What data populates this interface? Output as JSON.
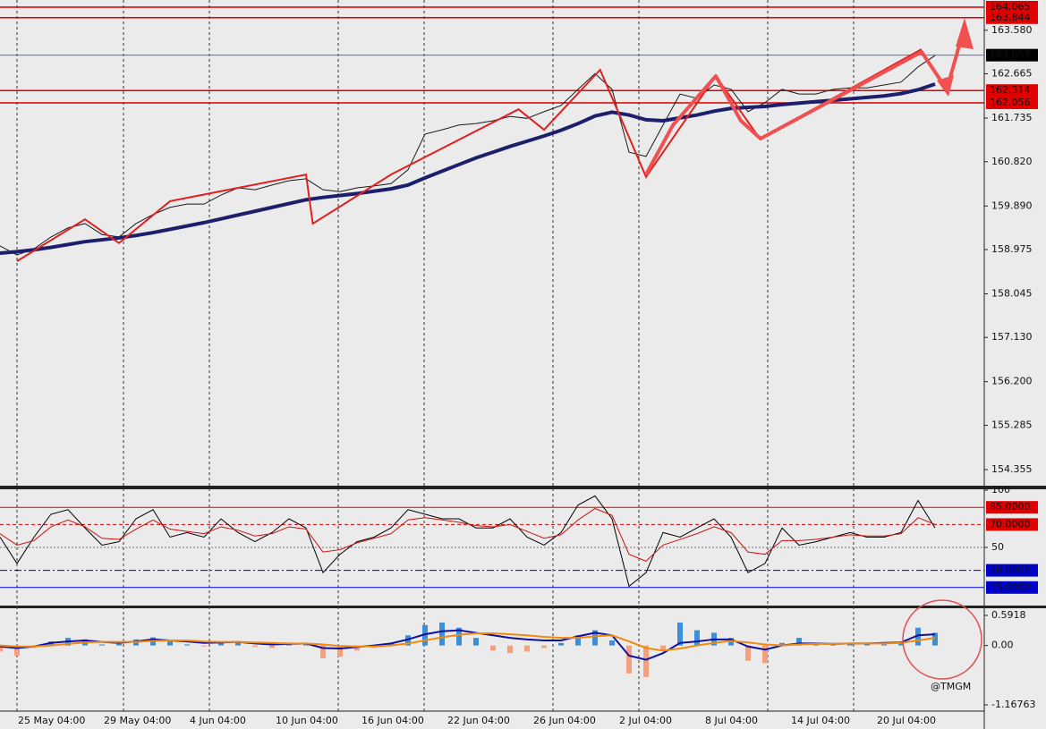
{
  "chart_data": [
    {
      "type": "line",
      "ylim": [
        154.016,
        164.215
      ],
      "yticks": [
        {
          "value": 163.58,
          "label": "163.580"
        },
        162.665,
        161.735,
        {
          "value": 160.82,
          "label": "160.820"
        },
        {
          "value": 159.89,
          "label": "159.890"
        },
        158.975,
        158.045,
        {
          "value": 157.13,
          "label": "157.130"
        },
        {
          "value": 156.2,
          "label": "156.200"
        },
        155.285,
        154.355
      ],
      "levels": [
        {
          "value": 164.065,
          "color": "#e00000"
        },
        {
          "value": 163.844,
          "color": "#e00000"
        },
        {
          "value": 163.057,
          "color": "#000000"
        },
        {
          "value": 162.314,
          "color": "#e00000"
        },
        {
          "value": 162.056,
          "color": "#e00000"
        }
      ],
      "series": [
        {
          "name": "Close",
          "color": "#1a1a1a",
          "values": [
            159.05,
            158.86,
            158.99,
            159.24,
            159.43,
            159.52,
            159.29,
            159.24,
            159.52,
            159.71,
            159.86,
            159.93,
            159.93,
            160.12,
            160.27,
            160.23,
            160.33,
            160.42,
            160.46,
            160.23,
            160.19,
            160.27,
            160.31,
            160.36,
            160.65,
            161.4,
            161.49,
            161.59,
            161.62,
            161.68,
            161.77,
            161.73,
            161.87,
            162.0,
            162.34,
            162.67,
            162.34,
            161.02,
            160.93,
            161.59,
            162.24,
            162.15,
            162.43,
            162.34,
            161.87,
            162.06,
            162.34,
            162.24,
            162.24,
            162.34,
            162.37,
            162.37,
            162.43,
            162.49,
            162.81,
            163.05
          ]
        },
        {
          "name": "MA",
          "color": "#1c1f6b",
          "values": [
            158.9,
            158.93,
            158.97,
            159.02,
            159.08,
            159.14,
            159.18,
            159.22,
            159.27,
            159.33,
            159.4,
            159.47,
            159.54,
            159.62,
            159.7,
            159.78,
            159.86,
            159.94,
            160.02,
            160.07,
            160.11,
            160.15,
            160.2,
            160.25,
            160.33,
            160.48,
            160.62,
            160.76,
            160.9,
            161.02,
            161.14,
            161.25,
            161.36,
            161.48,
            161.62,
            161.78,
            161.86,
            161.8,
            161.7,
            161.68,
            161.74,
            161.8,
            161.88,
            161.94,
            161.96,
            161.98,
            162.02,
            162.05,
            162.08,
            162.11,
            162.14,
            162.17,
            162.2,
            162.25,
            162.33,
            162.45
          ]
        }
      ],
      "zigzag": {
        "color": "#e02020",
        "x": [
          1,
          5,
          7,
          10,
          18,
          18.4,
          23,
          30.5,
          32,
          35.3,
          38,
          42.1,
          44.7,
          54.2
        ],
        "values": [
          158.73,
          159.61,
          159.11,
          159.99,
          160.55,
          159.52,
          160.55,
          161.92,
          161.49,
          162.75,
          160.5,
          162.62,
          161.3,
          163.18
        ]
      }
    },
    {
      "type": "line",
      "ylim": [
        0,
        100
      ],
      "yticks": [
        100,
        50
      ],
      "levels": [
        {
          "value": 85,
          "label": "85.0000",
          "color": "#e00000",
          "style": "solid"
        },
        {
          "value": 70,
          "label": "70.0000",
          "color": "#e00000",
          "style": "dashed"
        },
        {
          "value": 30,
          "label": "30.0000",
          "color": "#0000cc",
          "style": "dashdot"
        },
        {
          "value": 15,
          "label": "15.0000",
          "color": "#0000cc",
          "style": "solid"
        }
      ],
      "series": [
        {
          "name": "Fast",
          "color": "#000000",
          "values": [
            59,
            36,
            59,
            79,
            83,
            67,
            52,
            55,
            75,
            83,
            59,
            63,
            59,
            75,
            63,
            55,
            63,
            75,
            67,
            28,
            44,
            55,
            59,
            67,
            83,
            79,
            75,
            75,
            67,
            67,
            75,
            59,
            52,
            63,
            87,
            95,
            75,
            16,
            28,
            63,
            59,
            67,
            75,
            59,
            28,
            36,
            67,
            52,
            55,
            59,
            63,
            59,
            59,
            63,
            91,
            67
          ]
        },
        {
          "name": "Slow",
          "color": "#d01010",
          "values": [
            62,
            52,
            56,
            68,
            74,
            68,
            58,
            57,
            66,
            74,
            66,
            64,
            62,
            68,
            65,
            60,
            62,
            68,
            66,
            46,
            48,
            54,
            58,
            62,
            74,
            76,
            74,
            72,
            69,
            68,
            70,
            64,
            58,
            61,
            74,
            84,
            78,
            44,
            38,
            52,
            57,
            62,
            68,
            63,
            46,
            44,
            56,
            56,
            57,
            59,
            61,
            60,
            60,
            62,
            76,
            70
          ]
        }
      ]
    },
    {
      "type": "bar",
      "ylim": [
        -1.16763,
        0.5918
      ],
      "yticks": [
        0.5918,
        {
          "value": 0,
          "label": "0.00"
        },
        -1.16763
      ],
      "pos_color": "#3a8fd8",
      "neg_color": "#f2a07e",
      "values": [
        -0.12,
        -0.2,
        -0.05,
        0.08,
        0.15,
        0.12,
        0.02,
        0.03,
        0.12,
        0.16,
        0.08,
        0.02,
        -0.02,
        0.05,
        0.06,
        -0.03,
        -0.05,
        0.02,
        0.04,
        -0.25,
        -0.22,
        -0.1,
        -0.05,
        0.05,
        0.2,
        0.4,
        0.45,
        0.35,
        0.15,
        -0.1,
        -0.15,
        -0.12,
        -0.05,
        0.05,
        0.2,
        0.3,
        0.1,
        -0.55,
        -0.62,
        -0.1,
        0.45,
        0.3,
        0.25,
        0.15,
        -0.3,
        -0.35,
        0.05,
        0.15,
        0.05,
        0.02,
        0.04,
        0.03,
        0.02,
        0.05,
        0.35,
        0.25
      ],
      "series": [
        {
          "name": "MACD",
          "color": "#1010a0",
          "values": [
            -0.02,
            -0.05,
            -0.02,
            0.05,
            0.08,
            0.1,
            0.07,
            0.05,
            0.08,
            0.12,
            0.1,
            0.08,
            0.05,
            0.06,
            0.07,
            0.04,
            0.02,
            0.03,
            0.04,
            -0.05,
            -0.06,
            -0.03,
            0.0,
            0.04,
            0.12,
            0.22,
            0.28,
            0.3,
            0.25,
            0.2,
            0.15,
            0.12,
            0.1,
            0.1,
            0.18,
            0.25,
            0.2,
            -0.2,
            -0.28,
            -0.15,
            0.05,
            0.08,
            0.12,
            0.12,
            -0.02,
            -0.08,
            0.0,
            0.04,
            0.04,
            0.03,
            0.04,
            0.04,
            0.05,
            0.06,
            0.2,
            0.22
          ]
        },
        {
          "name": "Signal",
          "color": "#f08a10",
          "values": [
            0.0,
            -0.02,
            -0.02,
            0.0,
            0.03,
            0.06,
            0.07,
            0.07,
            0.07,
            0.09,
            0.1,
            0.1,
            0.08,
            0.07,
            0.07,
            0.06,
            0.05,
            0.04,
            0.04,
            0.02,
            -0.01,
            -0.02,
            -0.02,
            0.0,
            0.04,
            0.1,
            0.16,
            0.21,
            0.24,
            0.24,
            0.22,
            0.2,
            0.17,
            0.15,
            0.15,
            0.18,
            0.2,
            0.08,
            -0.05,
            -0.1,
            -0.06,
            0.0,
            0.05,
            0.09,
            0.06,
            0.02,
            0.0,
            0.02,
            0.03,
            0.03,
            0.04,
            0.04,
            0.04,
            0.05,
            0.1,
            0.15
          ]
        }
      ]
    }
  ],
  "time_axis": {
    "labels": [
      "25 May 04:00",
      "29 May 04:00",
      "4 Jun 04:00",
      "10 Jun 04:00",
      "16 Jun 04:00",
      "22 Jun 04:00",
      "26 Jun 04:00",
      "2 Jul 04:00",
      "8 Jul 04:00",
      "14 Jul 04:00",
      "20 Jul 04:00"
    ]
  },
  "watermark": "@TMGM"
}
